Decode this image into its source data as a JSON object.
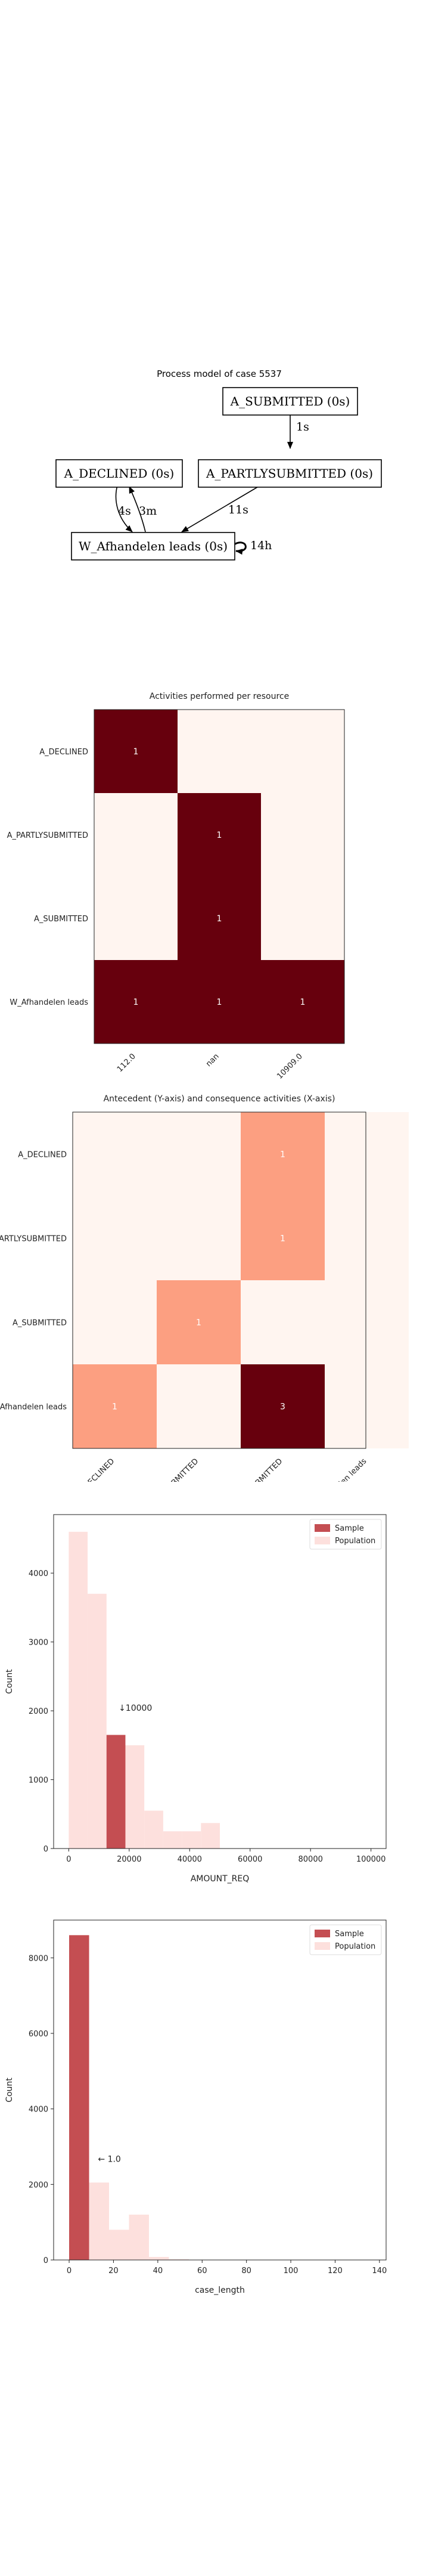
{
  "process_model": {
    "title": "Process model of case 5537",
    "nodes": [
      {
        "id": "A_SUBMITTED",
        "label": "A_SUBMITTED (0s)"
      },
      {
        "id": "A_DECLINED",
        "label": "A_DECLINED (0s)"
      },
      {
        "id": "A_PARTLYSUBMITTED",
        "label": "A_PARTLYSUBMITTED (0s)"
      },
      {
        "id": "W_Afhandelen",
        "label": "W_Afhandelen leads (0s)"
      }
    ],
    "edges": [
      {
        "from": "A_SUBMITTED",
        "to": "A_PARTLYSUBMITTED",
        "label": "1s"
      },
      {
        "from": "A_PARTLYSUBMITTED",
        "to": "W_Afhandelen",
        "label": "11s"
      },
      {
        "from": "A_DECLINED",
        "to": "W_Afhandelen",
        "label": "4s"
      },
      {
        "from": "W_Afhandelen",
        "to": "A_DECLINED",
        "label": "3m"
      },
      {
        "from": "W_Afhandelen",
        "to": "W_Afhandelen",
        "label": "14h"
      }
    ]
  },
  "chart_data": [
    {
      "type": "heatmap",
      "title": "Activities performed per resource",
      "rows": [
        "A_DECLINED",
        "A_PARTLYSUBMITTED",
        "A_SUBMITTED",
        "W_Afhandelen leads"
      ],
      "columns": [
        "112.0",
        "nan",
        "10909.0"
      ],
      "values": [
        [
          1,
          0,
          0
        ],
        [
          0,
          1,
          0
        ],
        [
          0,
          1,
          0
        ],
        [
          1,
          1,
          1
        ]
      ],
      "colors": {
        "low": "#fff5f0",
        "high": "#67000d"
      }
    },
    {
      "type": "heatmap",
      "title": "Antecedent (Y-axis) and consequence activities (X-axis)",
      "rows": [
        "A_DECLINED",
        "A_PARTLYSUBMITTED",
        "A_SUBMITTED",
        "W_Afhandelen leads"
      ],
      "columns": [
        "A_DECLINED",
        "A_PARTLYSUBMITTED",
        "A_SUBMITTED",
        "W_Afhandelen leads"
      ],
      "values": [
        [
          0,
          0,
          1,
          0
        ],
        [
          0,
          0,
          1,
          0
        ],
        [
          0,
          1,
          0,
          0
        ],
        [
          1,
          0,
          3,
          0
        ]
      ],
      "colors": {
        "zero": "#fff5f0",
        "one": "#fc9f81",
        "three": "#67000d"
      }
    },
    {
      "type": "bar",
      "subtype": "histogram",
      "xlabel": "AMOUNT_REQ",
      "ylabel": "Count",
      "xlim": [
        -5000,
        105000
      ],
      "ylim": [
        0,
        4850
      ],
      "xticks": [
        0,
        20000,
        40000,
        60000,
        80000,
        100000
      ],
      "yticks": [
        0,
        1000,
        2000,
        3000,
        4000
      ],
      "population": {
        "name": "Population",
        "bin_edges": [
          0,
          6250,
          12500,
          18750,
          25000,
          31250,
          37500,
          43750,
          50000,
          56250
        ],
        "counts": [
          4600,
          3700,
          1550,
          1500,
          550,
          250,
          250,
          370,
          0
        ]
      },
      "sample": {
        "name": "Sample",
        "bin_edges": [
          12500,
          18750
        ],
        "counts": [
          1650
        ]
      },
      "annotation": {
        "text": "↓10000",
        "x": 16500,
        "y": 2000
      },
      "legend": "top-right",
      "colors": {
        "sample": "#c44e52",
        "population": "#fde0dd"
      }
    },
    {
      "type": "bar",
      "subtype": "histogram",
      "xlabel": "case_length",
      "ylabel": "Count",
      "xlim": [
        -7,
        143
      ],
      "ylim": [
        0,
        9000
      ],
      "xticks": [
        0,
        20,
        40,
        60,
        80,
        100,
        120,
        140
      ],
      "yticks": [
        0,
        2000,
        4000,
        6000,
        8000
      ],
      "population": {
        "name": "Population",
        "bin_edges": [
          0,
          9,
          18,
          27,
          36,
          45,
          54
        ],
        "counts": [
          8600,
          2050,
          800,
          1200,
          80,
          20
        ]
      },
      "sample": {
        "name": "Sample",
        "bin_edges": [
          0,
          9
        ],
        "counts": [
          8600
        ]
      },
      "annotation": {
        "text": "← 1.0",
        "x": 13,
        "y": 2600
      },
      "legend": "top-right",
      "colors": {
        "sample": "#c44e52",
        "population": "#fde0dd"
      }
    }
  ]
}
